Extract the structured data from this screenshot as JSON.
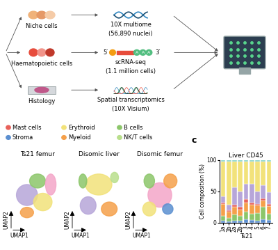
{
  "diagram": {
    "inputs": [
      "Niche cells",
      "Haematopoietic cells",
      "Histology"
    ],
    "assays": [
      {
        "name": "10X multiome",
        "detail": "(56,890 nuclei)"
      },
      {
        "name": "scRNA-seq",
        "detail": "(1.1 million cells)"
      },
      {
        "name": "Spatial transcriptomics",
        "detail": "(10X Visium)"
      }
    ],
    "sequence": {
      "start": "5′",
      "end": "3′",
      "tail": "AAA"
    }
  },
  "umap": {
    "legend": [
      {
        "name": "Mast cells",
        "color": "#e8615a"
      },
      {
        "name": "Erythroid",
        "color": "#f2e27a"
      },
      {
        "name": "B cells",
        "color": "#8cc66a"
      },
      {
        "name": "Stroma",
        "color": "#5b8fd0"
      },
      {
        "name": "Myeloid",
        "color": "#f5a04a"
      },
      {
        "name": "NK/T cells",
        "color": "#b9df8c"
      }
    ],
    "panels": [
      "Ts21 femur",
      "Disomic liver",
      "Disomic femur"
    ],
    "xlabel": "UMAP1",
    "ylabel": "UMAP2"
  },
  "panel_label": "c",
  "chart_data": {
    "type": "bar",
    "stacked": true,
    "title": "Liver CD45",
    "xlabel": "Ts21",
    "ylabel": "Cell composition (%)",
    "categories": [
      "1a",
      "1b",
      "2a",
      "2b",
      "3",
      "4",
      "5",
      "6",
      "7"
    ],
    "ylim": [
      0,
      100
    ],
    "yticks": [
      0,
      50,
      100
    ],
    "series": [
      {
        "name": "Stroma",
        "color": "#5b8fd0",
        "values": [
          3,
          2,
          3,
          3,
          5,
          4,
          3,
          5,
          4
        ]
      },
      {
        "name": "B cells",
        "color": "#8cc66a",
        "values": [
          8,
          5,
          10,
          8,
          12,
          10,
          12,
          20,
          10
        ]
      },
      {
        "name": "Myeloid",
        "color": "#f5a04a",
        "values": [
          18,
          10,
          12,
          10,
          15,
          14,
          12,
          10,
          12
        ]
      },
      {
        "name": "Mast cells",
        "color": "#e8615a",
        "values": [
          3,
          3,
          3,
          4,
          5,
          4,
          3,
          3,
          4
        ]
      },
      {
        "color": "#b7a6d9",
        "values": [
          10,
          8,
          28,
          25,
          25,
          30,
          20,
          22,
          18
        ]
      },
      {
        "name": "Erythroid",
        "color": "#f2e27a",
        "values": [
          55,
          69,
          41,
          47,
          35,
          35,
          47,
          37,
          49
        ]
      },
      {
        "color": "#7fd1c8",
        "values": [
          3,
          3,
          3,
          3,
          3,
          3,
          3,
          3,
          3
        ]
      }
    ]
  }
}
